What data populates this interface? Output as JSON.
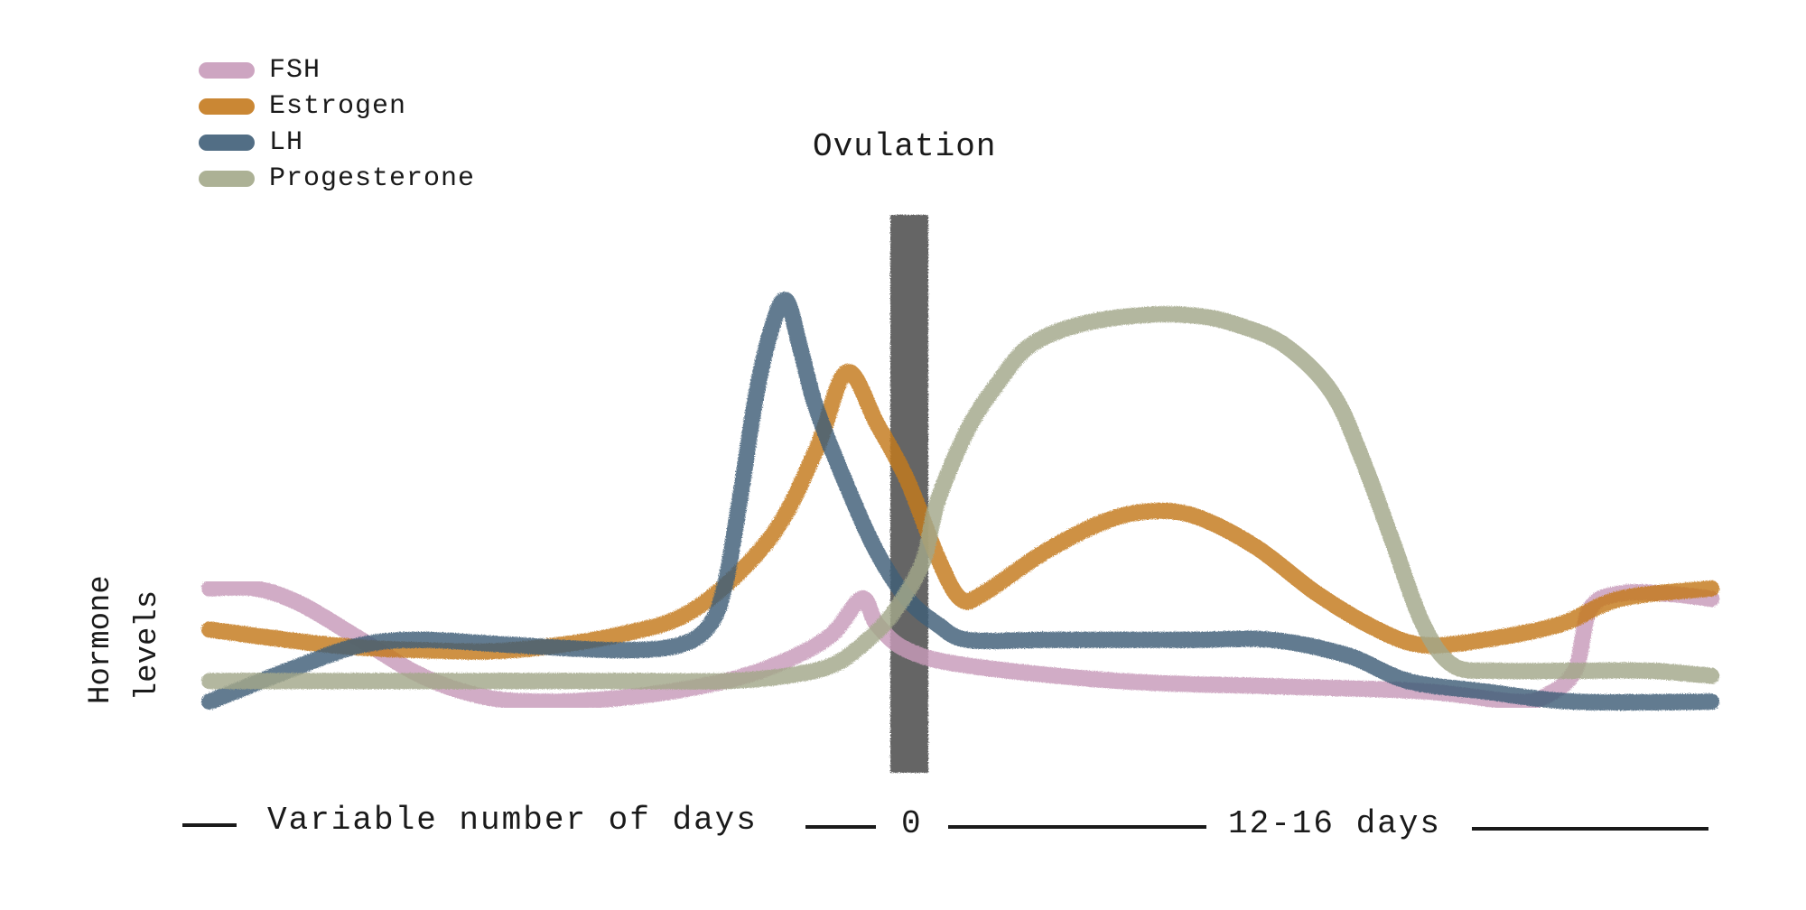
{
  "legend": {
    "items": [
      {
        "label": "FSH",
        "color": "#c89bba"
      },
      {
        "label": "Estrogen",
        "color": "#c47a1e"
      },
      {
        "label": "LH",
        "color": "#3f5e78"
      },
      {
        "label": "Progesterone",
        "color": "#a3a88a"
      }
    ]
  },
  "annotations": {
    "ovulation": "Ovulation",
    "ylabel_line1": "Hormone",
    "ylabel_line2": "levels",
    "x_left": "Variable number of days",
    "x_center": "0",
    "x_right": "12-16 days"
  },
  "chart_data": {
    "type": "line",
    "title": "",
    "ylabel": "Hormone levels",
    "xlim": [
      0,
      100
    ],
    "ylim": [
      0,
      100
    ],
    "grid": false,
    "legend_position": "top-left",
    "ovulation_x": 46,
    "series": [
      {
        "name": "FSH",
        "color": "#c89bba",
        "points": [
          [
            0,
            26
          ],
          [
            3,
            26
          ],
          [
            6,
            23
          ],
          [
            10,
            16
          ],
          [
            14,
            9
          ],
          [
            18,
            5
          ],
          [
            22,
            4
          ],
          [
            28,
            5
          ],
          [
            34,
            8
          ],
          [
            38,
            12
          ],
          [
            41,
            17
          ],
          [
            43,
            24
          ],
          [
            44,
            19
          ],
          [
            46,
            14
          ],
          [
            50,
            11
          ],
          [
            60,
            8
          ],
          [
            70,
            7
          ],
          [
            80,
            6
          ],
          [
            86,
            4
          ],
          [
            88,
            5
          ],
          [
            90,
            10
          ],
          [
            91,
            22
          ],
          [
            93,
            25
          ],
          [
            96,
            25
          ],
          [
            99,
            24
          ]
        ]
      },
      {
        "name": "Estrogen",
        "color": "#c47a1e",
        "points": [
          [
            0,
            18
          ],
          [
            8,
            15
          ],
          [
            14,
            14
          ],
          [
            20,
            14
          ],
          [
            27,
            17
          ],
          [
            32,
            22
          ],
          [
            37,
            36
          ],
          [
            40,
            53
          ],
          [
            42,
            68
          ],
          [
            44,
            58
          ],
          [
            46,
            47
          ],
          [
            48,
            32
          ],
          [
            49.5,
            24
          ],
          [
            51,
            25
          ],
          [
            55,
            33
          ],
          [
            59,
            39
          ],
          [
            62,
            41
          ],
          [
            65,
            40
          ],
          [
            69,
            34
          ],
          [
            73,
            25
          ],
          [
            77,
            18
          ],
          [
            80,
            15
          ],
          [
            84,
            16
          ],
          [
            89,
            19
          ],
          [
            93,
            24
          ],
          [
            99,
            26
          ]
        ]
      },
      {
        "name": "LH",
        "color": "#3f5e78",
        "points": [
          [
            0,
            4
          ],
          [
            6,
            11
          ],
          [
            10,
            15
          ],
          [
            14,
            16
          ],
          [
            20,
            15
          ],
          [
            27,
            14
          ],
          [
            31,
            15
          ],
          [
            33,
            19
          ],
          [
            34,
            27
          ],
          [
            35,
            44
          ],
          [
            36,
            63
          ],
          [
            37,
            76
          ],
          [
            38,
            82
          ],
          [
            39,
            72
          ],
          [
            40,
            61
          ],
          [
            42,
            46
          ],
          [
            44,
            33
          ],
          [
            46,
            24
          ],
          [
            48,
            19
          ],
          [
            50,
            16
          ],
          [
            55,
            16
          ],
          [
            60,
            16
          ],
          [
            65,
            16
          ],
          [
            70,
            16
          ],
          [
            75,
            13
          ],
          [
            79,
            8
          ],
          [
            84,
            6
          ],
          [
            90,
            4
          ],
          [
            99,
            4
          ]
        ]
      },
      {
        "name": "Progesterone",
        "color": "#a3a88a",
        "points": [
          [
            0,
            8
          ],
          [
            10,
            8
          ],
          [
            20,
            8
          ],
          [
            28,
            8
          ],
          [
            34,
            8
          ],
          [
            38,
            9
          ],
          [
            41,
            11
          ],
          [
            43,
            15
          ],
          [
            45,
            21
          ],
          [
            47,
            31
          ],
          [
            48,
            43
          ],
          [
            50,
            57
          ],
          [
            52,
            66
          ],
          [
            54,
            73
          ],
          [
            57,
            77
          ],
          [
            61,
            79
          ],
          [
            65,
            79
          ],
          [
            68,
            77
          ],
          [
            71,
            73
          ],
          [
            74,
            64
          ],
          [
            76,
            51
          ],
          [
            78,
            35
          ],
          [
            80,
            19
          ],
          [
            82,
            11
          ],
          [
            85,
            10
          ],
          [
            90,
            10
          ],
          [
            95,
            10
          ],
          [
            99,
            9
          ]
        ]
      }
    ]
  }
}
